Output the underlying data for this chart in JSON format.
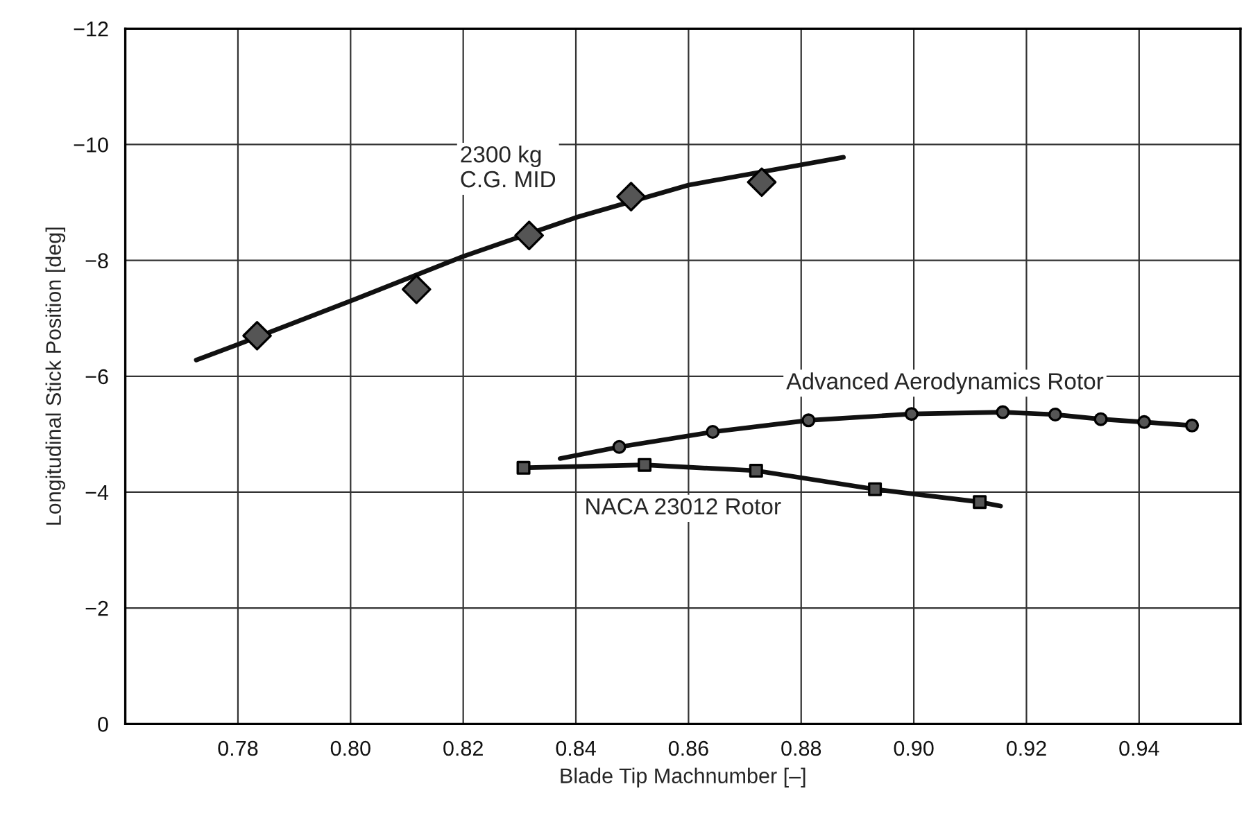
{
  "chart_data": {
    "type": "line",
    "xlabel": "Blade Tip Machnumber [–]",
    "ylabel": "Longitudinal Stick Position [deg]",
    "xlim": [
      0.76,
      0.958
    ],
    "ylim": [
      0,
      -12
    ],
    "xticks": [
      {
        "value": 0.78,
        "label": "0.78"
      },
      {
        "value": 0.8,
        "label": "0.80"
      },
      {
        "value": 0.82,
        "label": "0.82"
      },
      {
        "value": 0.84,
        "label": "0.84"
      },
      {
        "value": 0.86,
        "label": "0.86"
      },
      {
        "value": 0.88,
        "label": "0.88"
      },
      {
        "value": 0.9,
        "label": "0.90"
      },
      {
        "value": 0.92,
        "label": "0.92"
      },
      {
        "value": 0.94,
        "label": "0.94"
      }
    ],
    "yticks": [
      0,
      {
        "value": -2,
        "label": "−2"
      },
      {
        "value": -4,
        "label": "−4"
      },
      {
        "value": -6,
        "label": "−6"
      },
      {
        "value": -8,
        "label": "−8"
      },
      {
        "value": -10,
        "label": "−10"
      },
      {
        "value": -12,
        "label": "−12"
      }
    ],
    "grid": true,
    "series": [
      {
        "color": "#111111",
        "x": [
          0.7726,
          0.78,
          0.8,
          0.82,
          0.84,
          0.86,
          0.88,
          0.8875
        ],
        "values": [
          -6.28,
          -6.55,
          -7.3,
          -8.07,
          -8.74,
          -9.3,
          -9.65,
          -9.78
        ]
      },
      {
        "type": "scatter",
        "marker": "diamond",
        "color": "#555555",
        "name": "2300 kg\nC.G. MID",
        "x": [
          0.7834,
          0.8117,
          0.8317,
          0.8498,
          0.873
        ],
        "values": [
          -6.7,
          -7.5,
          -8.43,
          -9.1,
          -9.35
        ]
      },
      {
        "color": "#111111",
        "x": [
          0.8372,
          0.8477,
          0.8643,
          0.8813,
          0.8996,
          0.9158,
          0.9251,
          0.9332,
          0.9409,
          0.9494
        ],
        "values": [
          -4.58,
          -4.78,
          -5.04,
          -5.24,
          -5.35,
          -5.38,
          -5.34,
          -5.26,
          -5.21,
          -5.15
        ]
      },
      {
        "type": "scatter",
        "marker": "circle",
        "color": "#555555",
        "name": "Advanced Aerodynamics Rotor",
        "x": [
          0.8477,
          0.8643,
          0.8813,
          0.8996,
          0.9158,
          0.9251,
          0.9332,
          0.9409,
          0.9494
        ],
        "values": [
          -4.78,
          -5.04,
          -5.24,
          -5.35,
          -5.38,
          -5.34,
          -5.26,
          -5.21,
          -5.15
        ]
      },
      {
        "color": "#111111",
        "x": [
          0.8307,
          0.8522,
          0.872,
          0.8931,
          0.9117,
          0.9154
        ],
        "values": [
          -4.42,
          -4.47,
          -4.37,
          -4.05,
          -3.83,
          -3.76
        ]
      },
      {
        "type": "scatter",
        "marker": "square",
        "color": "#555555",
        "name": "NACA 23012 Rotor",
        "x": [
          0.8307,
          0.8522,
          0.872,
          0.8931,
          0.9117
        ],
        "values": [
          -4.42,
          -4.47,
          -4.37,
          -4.05,
          -3.83
        ]
      }
    ]
  }
}
